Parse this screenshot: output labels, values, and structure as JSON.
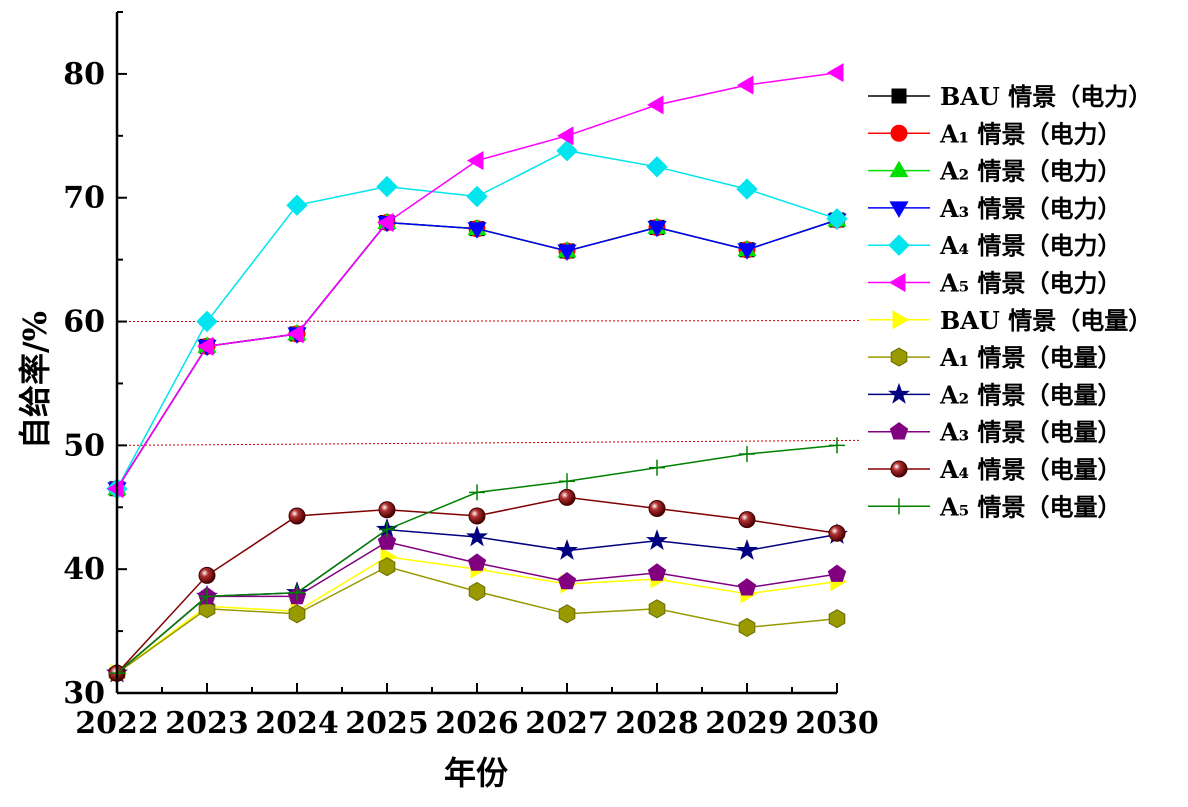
{
  "chart_data": {
    "type": "line",
    "xlabel": "年份",
    "ylabel": "自给率/%",
    "x": [
      2022,
      2023,
      2024,
      2025,
      2026,
      2027,
      2028,
      2029,
      2030
    ],
    "xlim": [
      2022,
      2030
    ],
    "ylim": [
      30,
      85
    ],
    "yticks": [
      30,
      40,
      50,
      60,
      70,
      80
    ],
    "reference_lines": [
      50,
      60
    ],
    "grid": false,
    "legend_position": "right",
    "series": [
      {
        "name": "BAU 情景（电力）",
        "marker": "square",
        "color": "#000000",
        "values": [
          46.5,
          58.0,
          59.0,
          68.0,
          67.5,
          65.7,
          67.6,
          65.8,
          68.2
        ]
      },
      {
        "name": "A₁ 情景（电力）",
        "marker": "circle",
        "color": "#ff0000",
        "values": [
          46.5,
          58.0,
          59.0,
          68.0,
          67.5,
          65.7,
          67.6,
          65.8,
          68.2
        ]
      },
      {
        "name": "A₂ 情景（电力）",
        "marker": "triangle-up",
        "color": "#00e000",
        "values": [
          46.5,
          58.0,
          59.0,
          68.0,
          67.5,
          65.7,
          67.6,
          65.8,
          68.2
        ]
      },
      {
        "name": "A₃ 情景（电力）",
        "marker": "triangle-down",
        "color": "#0000ff",
        "values": [
          46.5,
          58.0,
          59.0,
          68.0,
          67.5,
          65.7,
          67.6,
          65.8,
          68.2
        ]
      },
      {
        "name": "A₄ 情景（电力）",
        "marker": "diamond",
        "color": "#00e5ee",
        "values": [
          46.5,
          60.0,
          69.4,
          70.9,
          70.1,
          73.8,
          72.5,
          70.7,
          68.3
        ]
      },
      {
        "name": "A₅ 情景（电力）",
        "marker": "triangle-left",
        "color": "#ff00ff",
        "values": [
          46.5,
          58.0,
          59.0,
          68.0,
          73.0,
          75.0,
          77.5,
          79.1,
          80.1
        ]
      },
      {
        "name": "BAU 情景（电量）",
        "marker": "triangle-right",
        "color": "#ffff00",
        "values": [
          31.6,
          37.0,
          36.6,
          41.0,
          40.0,
          38.8,
          39.2,
          38.0,
          39.0
        ]
      },
      {
        "name": "A₁ 情景（电量）",
        "marker": "hexagon",
        "color": "#999900",
        "values": [
          31.6,
          36.8,
          36.4,
          40.2,
          38.2,
          36.4,
          36.8,
          35.3,
          36.0
        ]
      },
      {
        "name": "A₂ 情景（电量）",
        "marker": "star",
        "color": "#000080",
        "values": [
          31.6,
          37.8,
          38.1,
          43.2,
          42.6,
          41.5,
          42.3,
          41.5,
          42.8
        ]
      },
      {
        "name": "A₃ 情景（电量）",
        "marker": "pentagon",
        "color": "#800080",
        "values": [
          31.6,
          37.8,
          37.8,
          42.2,
          40.5,
          39.0,
          39.7,
          38.5,
          39.6
        ]
      },
      {
        "name": "A₄ 情景（电量）",
        "marker": "sphere",
        "color": "#800000",
        "values": [
          31.6,
          39.5,
          44.3,
          44.8,
          44.3,
          45.8,
          44.9,
          44.0,
          42.9
        ]
      },
      {
        "name": "A₅ 情景（电量）",
        "marker": "plus",
        "color": "#008000",
        "values": [
          31.6,
          37.8,
          38.1,
          43.2,
          46.2,
          47.1,
          48.2,
          49.3,
          50.0
        ]
      }
    ]
  }
}
